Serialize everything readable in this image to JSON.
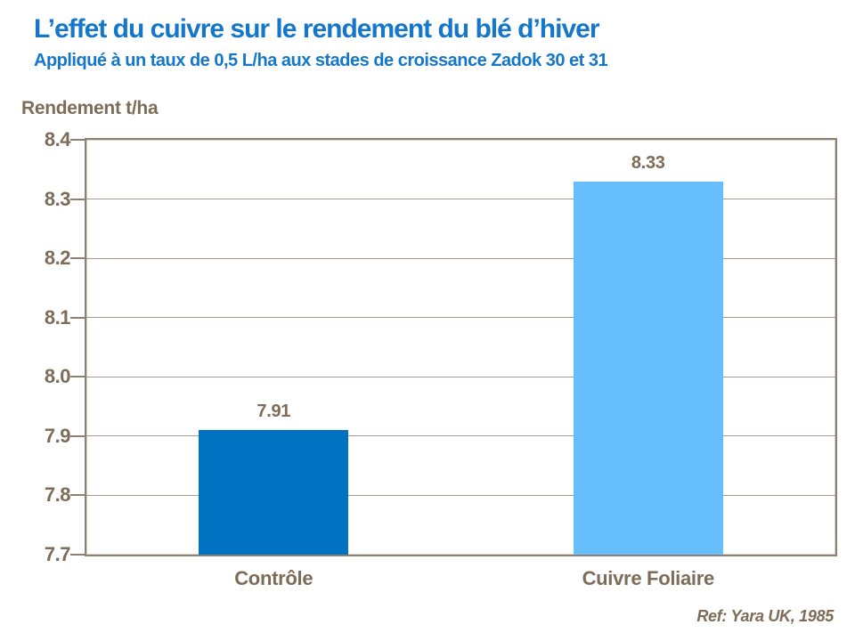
{
  "chart_data": {
    "type": "bar",
    "title": "L’effet du cuivre sur le rendement du blé d’hiver",
    "subtitle": "Appliqué à un taux de 0,5 L/ha aux stades de croissance Zadok 30 et 31",
    "ylabel": "Rendement t/ha",
    "xlabel": "",
    "categories": [
      "Contrôle",
      "Cuivre Foliaire"
    ],
    "values": [
      7.91,
      8.33
    ],
    "data_labels": [
      "7.91",
      "8.33"
    ],
    "series_colors": [
      "#0072c2",
      "#66befa"
    ],
    "ylim": [
      7.7,
      8.4
    ],
    "yticks": [
      "8.4",
      "8.3",
      "8.2",
      "8.1",
      "8.0",
      "7.9",
      "7.8",
      "7.7"
    ],
    "grid": true,
    "legend": null,
    "reference": "Ref: Yara UK, 1985"
  },
  "colors": {
    "title_blue": "#1577c9",
    "chart_text_brown": "#7c6c58",
    "axis_border": "#8d8071",
    "gridline": "#94897b",
    "bar_controle": "#0072c2",
    "bar_cuivre_foliaire": "#66befa",
    "background": "#ffffff"
  }
}
